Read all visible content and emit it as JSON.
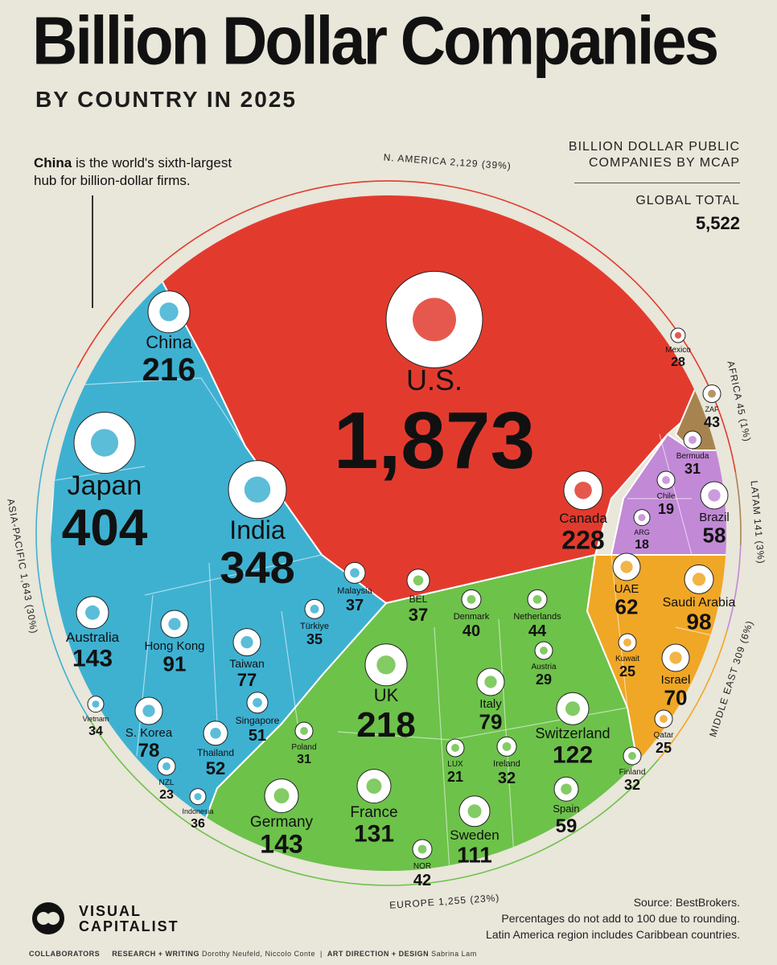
{
  "header": {
    "title": "Billion Dollar Companies",
    "subtitle": "BY COUNTRY IN 2025"
  },
  "annotation": {
    "strong": "China",
    "rest_line1": " is the world's sixth-largest",
    "line2": "hub for billion-dollar firms."
  },
  "summary": {
    "line1": "BILLION DOLLAR PUBLIC",
    "line2": "COMPANIES BY MCAP",
    "total_label": "GLOBAL TOTAL",
    "total_value": "5,522"
  },
  "footer": {
    "source": "Source: BestBrokers.",
    "note1": "Percentages do not add to 100 due to rounding.",
    "note2": "Latin America region includes Caribbean countries.",
    "logo_line1": "VISUAL",
    "logo_line2": "CAPITALIST",
    "collab_label": "COLLABORATORS",
    "research_label": "RESEARCH + WRITING",
    "research_names": "Dorothy Neufeld, Niccolo Conte",
    "design_label": "ART DIRECTION + DESIGN",
    "design_names": "Sabrina Lam"
  },
  "colors": {
    "n_america": "#e23b2e",
    "asia_pacific": "#3eb1d1",
    "europe": "#6dc24a",
    "middle_east": "#f0a726",
    "latam": "#c289d6",
    "africa": "#a7844f",
    "background": "#e9e6da"
  },
  "chart_data": {
    "type": "voronoi treemap",
    "total": 5522,
    "regions": [
      {
        "name": "N. AMERICA",
        "label": "N. AMERICA 2,129 (39%)",
        "value": 2129,
        "share": "39%",
        "countries": [
          {
            "name": "U.S.",
            "value": 1873
          },
          {
            "name": "Canada",
            "value": 228
          },
          {
            "name": "Mexico",
            "value": 28
          }
        ]
      },
      {
        "name": "ASIA-PACIFIC",
        "label": "ASIA-PACIFIC 1,643 (30%)",
        "value": 1643,
        "share": "30%",
        "countries": [
          {
            "name": "Japan",
            "value": 404
          },
          {
            "name": "India",
            "value": 348
          },
          {
            "name": "China",
            "value": 216
          },
          {
            "name": "Australia",
            "value": 143
          },
          {
            "name": "Hong Kong",
            "value": 91
          },
          {
            "name": "S. Korea",
            "value": 78
          },
          {
            "name": "Taiwan",
            "value": 77
          },
          {
            "name": "Thailand",
            "value": 52
          },
          {
            "name": "Singapore",
            "value": 51
          },
          {
            "name": "Malaysia",
            "value": 37
          },
          {
            "name": "Indonesia",
            "value": 36
          },
          {
            "name": "Türkiye",
            "value": 35
          },
          {
            "name": "Vietnam",
            "value": 34
          },
          {
            "name": "NZL",
            "value": 23
          }
        ]
      },
      {
        "name": "EUROPE",
        "label": "EUROPE 1,255 (23%)",
        "value": 1255,
        "share": "23%",
        "countries": [
          {
            "name": "UK",
            "value": 218
          },
          {
            "name": "Germany",
            "value": 143
          },
          {
            "name": "France",
            "value": 131
          },
          {
            "name": "Switzerland",
            "value": 122
          },
          {
            "name": "Sweden",
            "value": 111
          },
          {
            "name": "Italy",
            "value": 79
          },
          {
            "name": "Spain",
            "value": 59
          },
          {
            "name": "Netherlands",
            "value": 44
          },
          {
            "name": "NOR",
            "value": 42
          },
          {
            "name": "Denmark",
            "value": 40
          },
          {
            "name": "BEL",
            "value": 37
          },
          {
            "name": "Ireland",
            "value": 32
          },
          {
            "name": "Finland",
            "value": 32
          },
          {
            "name": "Poland",
            "value": 31
          },
          {
            "name": "Austria",
            "value": 29
          },
          {
            "name": "LUX",
            "value": 21
          }
        ]
      },
      {
        "name": "MIDDLE EAST",
        "label": "MIDDLE EAST 309 (6%)",
        "value": 309,
        "share": "6%",
        "countries": [
          {
            "name": "Saudi Arabia",
            "value": 98
          },
          {
            "name": "Israel",
            "value": 70
          },
          {
            "name": "UAE",
            "value": 62
          },
          {
            "name": "Qatar",
            "value": 25
          },
          {
            "name": "Kuwait",
            "value": 25
          }
        ]
      },
      {
        "name": "LATAM",
        "label": "LATAM 141 (3%)",
        "value": 141,
        "share": "3%",
        "countries": [
          {
            "name": "Brazil",
            "value": 58
          },
          {
            "name": "Bermuda",
            "value": 31
          },
          {
            "name": "Chile",
            "value": 19
          },
          {
            "name": "ARG",
            "value": 18
          }
        ]
      },
      {
        "name": "AFRICA",
        "label": "AFRICA 45 (1%)",
        "value": 45,
        "share": "1%",
        "countries": [
          {
            "name": "ZAF",
            "value": 43
          }
        ]
      }
    ]
  }
}
